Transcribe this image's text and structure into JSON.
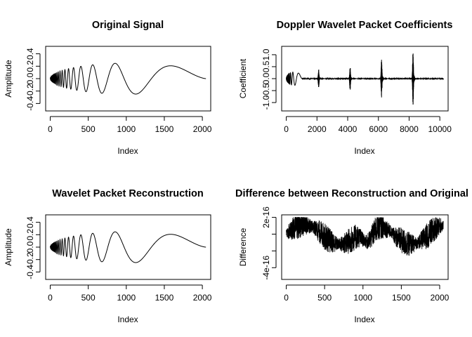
{
  "chart_data": [
    {
      "type": "line",
      "title": "Original Signal",
      "xlabel": "Index",
      "ylabel": "Amplitude",
      "xlim": [
        -60,
        2110
      ],
      "ylim": [
        -0.52,
        0.52
      ],
      "x_ticks": [
        0,
        500,
        1000,
        1500,
        2000
      ],
      "y_ticks": [
        -0.4,
        -0.2,
        0.0,
        0.2,
        0.4
      ],
      "x_tick_labels": [
        "0",
        "500",
        "1000",
        "1500",
        "2000"
      ],
      "y_tick_labels": [
        "-0.4",
        "-0.2",
        "0.0",
        "0.2",
        "0.4"
      ],
      "grid": false,
      "series": [
        {
          "signal": "doppler",
          "n": 2048,
          "amplitude": 0.5,
          "color": "#000000"
        }
      ]
    },
    {
      "type": "line",
      "title": "Doppler Wavelet Packet Coefficients",
      "xlabel": "Index",
      "ylabel": "Coefficient",
      "xlim": [
        -300,
        10540
      ],
      "ylim": [
        -1.35,
        1.35
      ],
      "x_ticks": [
        0,
        2000,
        4000,
        6000,
        8000,
        10000
      ],
      "y_ticks": [
        -1.0,
        -0.5,
        0.0,
        0.5,
        1.0
      ],
      "x_tick_labels": [
        "0",
        "2000",
        "4000",
        "6000",
        "8000",
        "10000"
      ],
      "y_tick_labels": [
        "-1.0",
        "-0.5",
        "0.0",
        "0.5",
        "1.0"
      ],
      "grid": false,
      "series": [
        {
          "signal": "wp_coefficients",
          "n": 10240,
          "color": "#000000",
          "blocks": [
            {
              "start": 0,
              "length": 1024,
              "amplitude": 0.28
            },
            {
              "start": 2048,
              "length": 512,
              "amplitude": 0.4
            },
            {
              "start": 4096,
              "length": 512,
              "amplitude": 0.55
            },
            {
              "start": 6144,
              "length": 512,
              "amplitude": 0.85
            },
            {
              "start": 8192,
              "length": 512,
              "amplitude": 1.2
            }
          ]
        }
      ]
    },
    {
      "type": "line",
      "title": "Wavelet Packet Reconstruction",
      "xlabel": "Index",
      "ylabel": "Amplitude",
      "xlim": [
        -60,
        2110
      ],
      "ylim": [
        -0.52,
        0.52
      ],
      "x_ticks": [
        0,
        500,
        1000,
        1500,
        2000
      ],
      "y_ticks": [
        -0.4,
        -0.2,
        0.0,
        0.2,
        0.4
      ],
      "x_tick_labels": [
        "0",
        "500",
        "1000",
        "1500",
        "2000"
      ],
      "y_tick_labels": [
        "-0.4",
        "-0.2",
        "0.0",
        "0.2",
        "0.4"
      ],
      "grid": false,
      "series": [
        {
          "signal": "doppler",
          "n": 2048,
          "amplitude": 0.5,
          "color": "#000000"
        }
      ]
    },
    {
      "type": "line",
      "title": "Difference between Reconstruction and Original",
      "xlabel": "Index",
      "ylabel": "Difference",
      "xlim": [
        -60,
        2110
      ],
      "ylim": [
        -5.4e-16,
        2.3e-16
      ],
      "x_ticks": [
        0,
        500,
        1000,
        1500,
        2000
      ],
      "y_ticks": [
        -4e-16,
        -2e-16,
        0,
        2e-16
      ],
      "x_tick_labels": [
        "0",
        "500",
        "1000",
        "1500",
        "2000"
      ],
      "y_tick_labels": [
        "-4e-16",
        "",
        "",
        "2e-16"
      ],
      "grid": false,
      "series": [
        {
          "signal": "roundoff_noise",
          "n": 2048,
          "range": [
            -5e-16,
            2e-16
          ],
          "color": "#000000"
        }
      ]
    }
  ]
}
